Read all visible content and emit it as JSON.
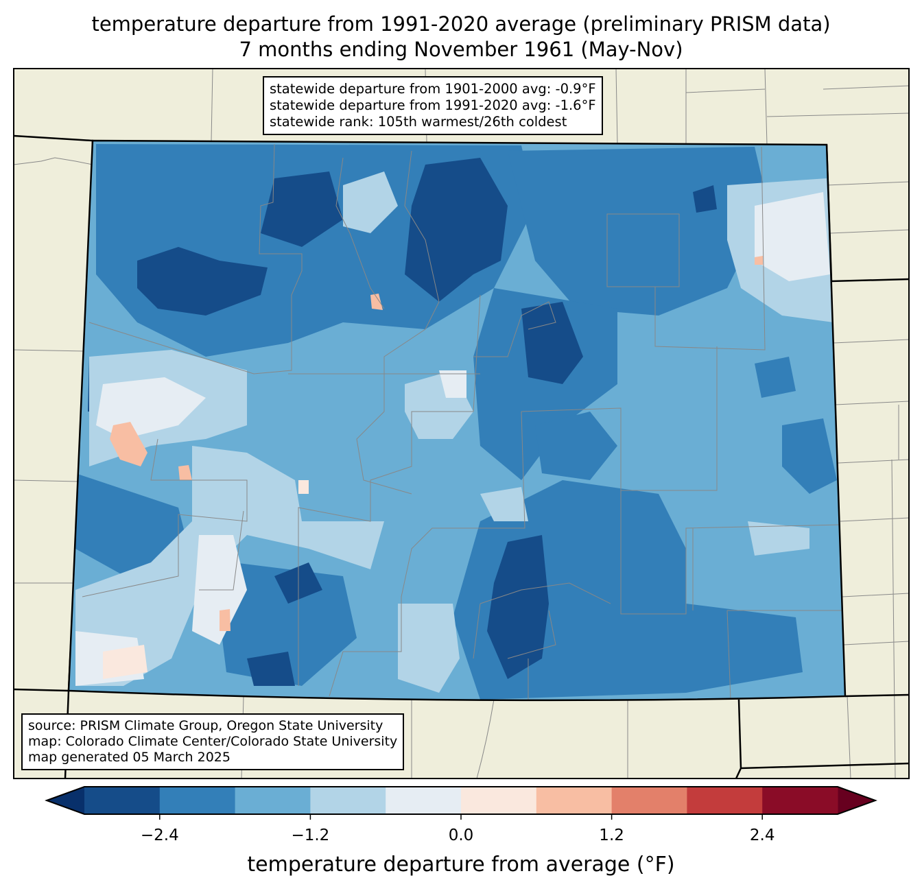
{
  "title": {
    "line1": "temperature departure from 1991-2020 average (preliminary PRISM data)",
    "line2": "7 months ending November 1961 (May-Nov)"
  },
  "stats_box": {
    "line1": "statewide departure from 1901-2000 avg: -0.9°F",
    "line2": "statewide departure from 1991-2020 avg: -1.6°F",
    "line3": "statewide rank: 105th warmest/26th coldest"
  },
  "credits_box": {
    "line1": "source: PRISM Climate Group, Oregon State University",
    "line2": "map: Colorado Climate Center/Colorado State University",
    "line3": "map generated 05 March 2025"
  },
  "colorbar": {
    "label": "temperature departure from average (°F)",
    "levels": [
      -3.0,
      -2.4,
      -1.8,
      -1.2,
      -0.6,
      0.0,
      0.6,
      1.2,
      1.8,
      2.4,
      3.0
    ],
    "colors": [
      "#154c89",
      "#337fb8",
      "#6aaed4",
      "#b2d4e7",
      "#e6edf3",
      "#fae8de",
      "#f8bea3",
      "#e3806a",
      "#c33c3c",
      "#8a0c27"
    ],
    "extend_low_color": "#08306b",
    "extend_high_color": "#67001f",
    "ticks": [
      "−2.4",
      "−1.2",
      "0.0",
      "1.2",
      "2.4"
    ],
    "tick_values": [
      -2.4,
      -1.2,
      0.0,
      1.2,
      2.4
    ]
  },
  "map_colors": {
    "land": "#efeedb",
    "base": "#6aaed4"
  }
}
